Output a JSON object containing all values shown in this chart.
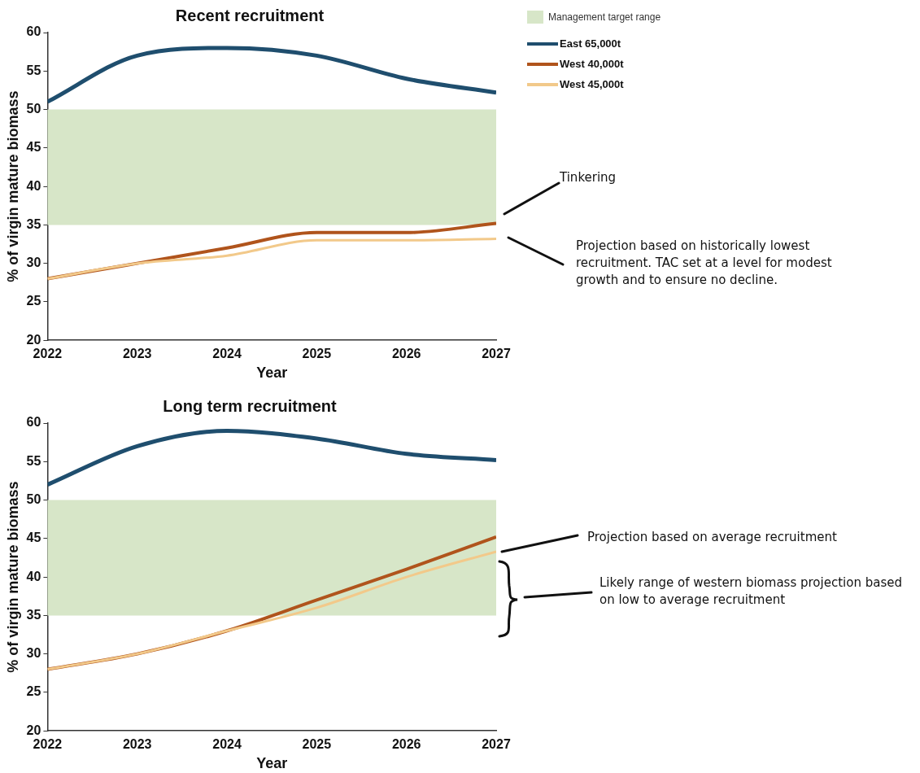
{
  "chart_data": [
    {
      "type": "line",
      "title": "Recent recruitment",
      "xlabel": "Year",
      "ylabel": "% of virgin mature biomass",
      "x": [
        2022,
        2023,
        2024,
        2025,
        2026,
        2027
      ],
      "xlim": [
        2022,
        2027
      ],
      "xticks": [
        2022,
        2023,
        2024,
        2025,
        2026,
        2027
      ],
      "ylim": [
        20,
        60
      ],
      "yticks": [
        20,
        25,
        30,
        35,
        40,
        45,
        50,
        55,
        60
      ],
      "grid": false,
      "marker": "none",
      "legend": "top right",
      "series": [
        {
          "name": "East 65,000t",
          "color": "#1f4e6e",
          "values": [
            51,
            57,
            58,
            57,
            54,
            52.2
          ]
        },
        {
          "name": "West 40,000t",
          "color": "#b0541c",
          "values": [
            28,
            30,
            32,
            34,
            34,
            35.2
          ]
        },
        {
          "name": "West 45,000t",
          "color": "#f2c98a",
          "values": [
            28,
            30,
            31,
            33,
            33,
            33.2
          ]
        }
      ],
      "bands": [
        {
          "axis": "y",
          "from": 35,
          "to": 50,
          "label": "Management target range",
          "color": "#d7e6c8"
        }
      ],
      "annotations": [
        "Tinkering",
        "Projection based on historically lowest recruitment. TAC set at a level for modest growth and to ensure no decline."
      ]
    },
    {
      "type": "line",
      "title": "Long term recruitment",
      "xlabel": "Year",
      "ylabel": "% of virgin mature biomass",
      "x": [
        2022,
        2023,
        2024,
        2025,
        2026,
        2027
      ],
      "xlim": [
        2022,
        2027
      ],
      "xticks": [
        2022,
        2023,
        2024,
        2025,
        2026,
        2027
      ],
      "ylim": [
        20,
        60
      ],
      "yticks": [
        20,
        25,
        30,
        35,
        40,
        45,
        50,
        55,
        60
      ],
      "grid": false,
      "marker": "none",
      "legend": false,
      "series": [
        {
          "color": "#1f4e6e",
          "values": [
            52,
            57,
            59,
            58,
            56,
            55.2
          ]
        },
        {
          "color": "#b0541c",
          "values": [
            28,
            30,
            33,
            37,
            41,
            45.2
          ]
        },
        {
          "color": "#f2c98a",
          "values": [
            28,
            30,
            33,
            36,
            40,
            43.3
          ]
        }
      ],
      "bands": [
        {
          "axis": "y",
          "from": 35,
          "to": 50,
          "color": "#d7e6c8"
        }
      ],
      "annotations": [
        "Projection based on average recruitment",
        "Likely range of western biomass projection based on low to average recruitment"
      ]
    }
  ]
}
